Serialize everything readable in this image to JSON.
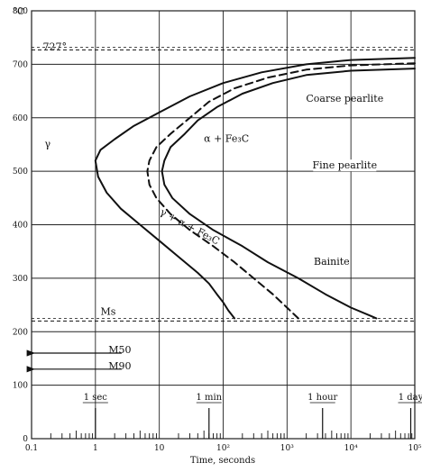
{
  "chart_data": {
    "type": "line",
    "title": "",
    "xlabel": "Time, seconds",
    "ylabel": "°C",
    "xscale": "log",
    "xlim": [
      0.1,
      100000
    ],
    "ylim": [
      0,
      800
    ],
    "grid": true,
    "x_ticks": [
      {
        "value": 0.1,
        "label": "0.1"
      },
      {
        "value": 1,
        "label": "1"
      },
      {
        "value": 10,
        "label": "10"
      },
      {
        "value": 100,
        "label": "10²"
      },
      {
        "value": 1000,
        "label": "10³"
      },
      {
        "value": 10000,
        "label": "10⁴"
      },
      {
        "value": 100000,
        "label": "10⁵"
      }
    ],
    "y_ticks": [
      {
        "value": 0,
        "label": "0"
      },
      {
        "value": 100,
        "label": "100"
      },
      {
        "value": 200,
        "label": "200"
      },
      {
        "value": 300,
        "label": "300"
      },
      {
        "value": 400,
        "label": "400"
      },
      {
        "value": 500,
        "label": "500"
      },
      {
        "value": 600,
        "label": "600"
      },
      {
        "value": 700,
        "label": "700"
      },
      {
        "value": 800,
        "label": "800"
      }
    ],
    "time_markers": [
      {
        "label": "1 sec",
        "x": 1
      },
      {
        "label": "1 min",
        "x": 60
      },
      {
        "label": "1 hour",
        "x": 3600
      },
      {
        "label": "1 day",
        "x": 86400
      }
    ],
    "horizontal_lines": [
      {
        "name": "727°",
        "y": 727,
        "style": "dashed"
      },
      {
        "name": "Ms",
        "y": 220,
        "style": "dashed"
      }
    ],
    "arrow_lines": [
      {
        "name": "M50",
        "y": 160
      },
      {
        "name": "M90",
        "y": 130
      }
    ],
    "series": [
      {
        "style": "solid",
        "x": [
          100000,
          10000,
          2000,
          400,
          100,
          30,
          10,
          4,
          2,
          1.2,
          1,
          1.1,
          1.5,
          2.5,
          5,
          10,
          20,
          40,
          60,
          80,
          100,
          120,
          150
        ],
        "y": [
          712,
          708,
          700,
          685,
          665,
          640,
          610,
          585,
          560,
          540,
          520,
          490,
          460,
          430,
          400,
          370,
          340,
          310,
          290,
          270,
          255,
          240,
          225
        ]
      },
      {
        "style": "dashed",
        "x": [
          100000,
          10000,
          2000,
          500,
          150,
          60,
          30,
          15,
          9,
          7,
          6.5,
          7,
          9,
          15,
          30,
          70,
          150,
          300,
          600,
          1000,
          1500
        ],
        "y": [
          702,
          698,
          690,
          675,
          655,
          630,
          600,
          570,
          545,
          520,
          500,
          475,
          450,
          420,
          390,
          360,
          330,
          300,
          270,
          245,
          225
        ]
      },
      {
        "style": "solid",
        "x": [
          100000,
          10000,
          2000,
          600,
          200,
          80,
          40,
          25,
          15,
          12,
          11,
          12,
          16,
          30,
          70,
          200,
          500,
          1500,
          4000,
          10000,
          20000,
          25000
        ],
        "y": [
          692,
          688,
          680,
          665,
          645,
          620,
          595,
          570,
          545,
          520,
          500,
          475,
          450,
          420,
          390,
          360,
          330,
          300,
          270,
          245,
          230,
          225
        ]
      }
    ],
    "annotations": [
      {
        "text": "727°",
        "x": 0.15,
        "y": 727
      },
      {
        "text": "γ",
        "x": 0.16,
        "y": 545
      },
      {
        "text": "α + Fe₃C",
        "x": 50,
        "y": 555
      },
      {
        "text": "γ + α + Fe₃C",
        "x": 10,
        "y": 420
      },
      {
        "text": "Coarse pearlite",
        "x": 8000,
        "y": 630
      },
      {
        "text": "Fine pearlite",
        "x": 8000,
        "y": 505
      },
      {
        "text": "Bainite",
        "x": 5000,
        "y": 325
      },
      {
        "text": "Ms",
        "x": 1.2,
        "y": 232
      },
      {
        "text": "M50",
        "x": 1.6,
        "y": 160
      },
      {
        "text": "M90",
        "x": 1.6,
        "y": 130
      }
    ]
  }
}
